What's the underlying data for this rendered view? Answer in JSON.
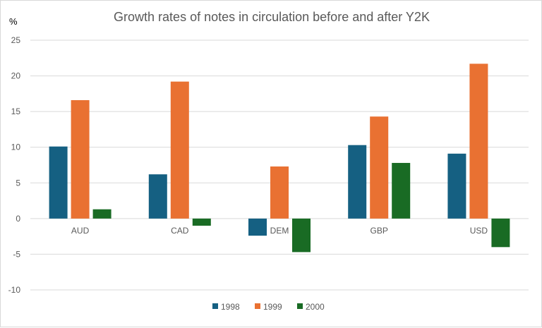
{
  "chart_data": {
    "type": "bar",
    "title": "Growth rates of notes in circulation before and after Y2K",
    "ylabel": "%",
    "categories": [
      "AUD",
      "CAD",
      "DEM",
      "GBP",
      "USD"
    ],
    "series": [
      {
        "name": "1998",
        "color": "#156082",
        "values": [
          10.1,
          6.2,
          -2.4,
          10.3,
          9.1
        ]
      },
      {
        "name": "1999",
        "color": "#E97132",
        "values": [
          16.6,
          19.2,
          7.3,
          14.3,
          21.7
        ]
      },
      {
        "name": "2000",
        "color": "#196B24",
        "values": [
          1.3,
          -1.0,
          -4.7,
          7.8,
          -4.0
        ]
      }
    ],
    "ylim": [
      -10,
      25
    ],
    "yticks": [
      "25",
      "20",
      "15",
      "10",
      "5",
      "0",
      "-5",
      "-10"
    ],
    "ytick_values": [
      25,
      20,
      15,
      10,
      5,
      0,
      -5,
      -10
    ],
    "grid": true,
    "legend": "bottom"
  }
}
